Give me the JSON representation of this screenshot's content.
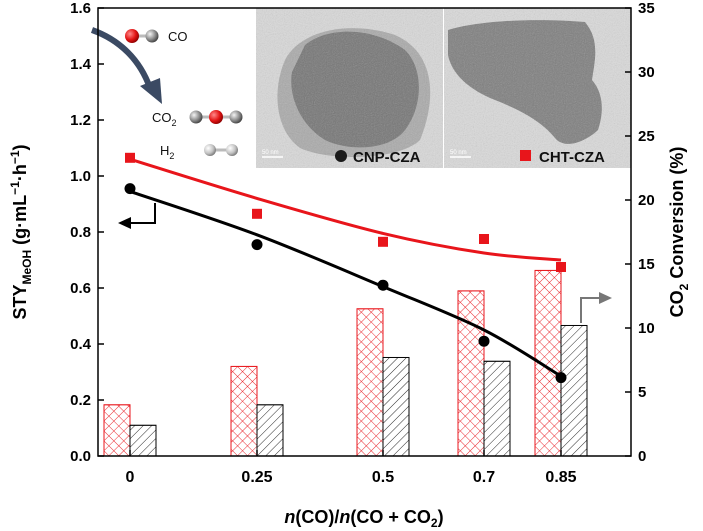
{
  "chart_data": {
    "type": "bar",
    "x_categories": [
      "0",
      "0.25",
      "0.5",
      "0.7",
      "0.85"
    ],
    "xlabel_parts": [
      "n",
      "(CO)/",
      "n",
      "(CO + CO",
      "2",
      ")"
    ],
    "ylabel_left_parts": [
      "STY",
      "MeOH",
      " (g·mL",
      "−1",
      "·h",
      "−1",
      ")"
    ],
    "ylabel_right_parts": [
      "CO",
      "2",
      " Conversion (%)"
    ],
    "y_left": {
      "range": [
        0,
        1.6
      ],
      "ticks": [
        "0.0",
        "0.2",
        "0.4",
        "0.6",
        "0.8",
        "1.0",
        "1.2",
        "1.4",
        "1.6"
      ]
    },
    "y_right": {
      "range": [
        0,
        35
      ],
      "ticks": [
        "0",
        "5",
        "10",
        "15",
        "20",
        "25",
        "30",
        "35"
      ]
    },
    "sty_series": [
      {
        "name": "CHT-CZA",
        "marker": "square",
        "color": "#e8151b",
        "values": [
          1.065,
          0.865,
          0.765,
          0.775,
          0.675
        ],
        "fit": [
          1.06,
          0.92,
          0.795,
          0.725,
          0.7
        ]
      },
      {
        "name": "CNP-CZA",
        "marker": "circle",
        "color": "#000000",
        "values": [
          0.955,
          0.755,
          0.61,
          0.41,
          0.28
        ],
        "fit": [
          0.945,
          0.79,
          0.605,
          0.45,
          0.285
        ]
      }
    ],
    "conversion_bars": [
      {
        "name": "CHT-CZA",
        "hatch": "crosshatch",
        "color": "#e8151b",
        "values": [
          4.0,
          7.0,
          11.5,
          12.9,
          14.5
        ]
      },
      {
        "name": "CNP-CZA",
        "hatch": "diagonal",
        "color": "#000000",
        "values": [
          2.4,
          4.0,
          7.7,
          7.4,
          10.2
        ]
      }
    ],
    "inset": {
      "molecule_labels": [
        {
          "text": "CO",
          "sub": ""
        },
        {
          "text": "CO",
          "sub": "2"
        },
        {
          "text": "H",
          "sub": "2"
        }
      ],
      "tem_panels": [
        {
          "label": "CNP-CZA",
          "scale": "50 nm"
        },
        {
          "label": "CHT-CZA",
          "scale": "50 nm"
        }
      ]
    }
  }
}
